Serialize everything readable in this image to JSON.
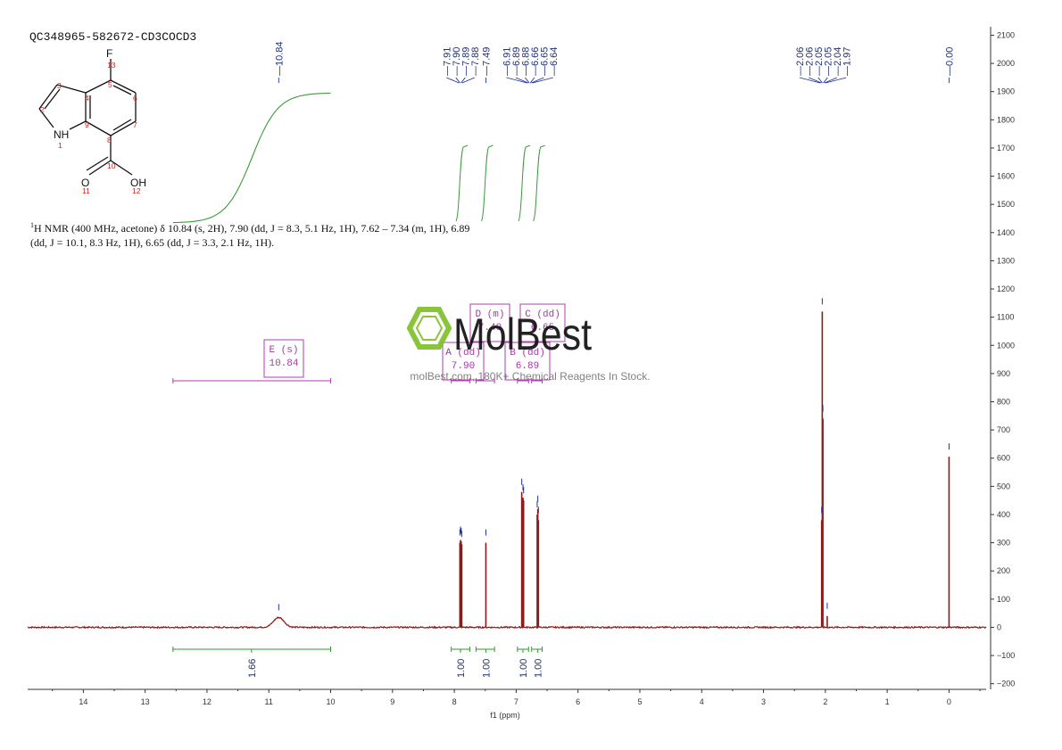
{
  "header": {
    "sample_id": "QC348965-582672-CD3COCD3",
    "nmr_description_line1": "H NMR (400 MHz, acetone) δ 10.84 (s, 2H), 7.90 (dd, J = 8.3, 5.1 Hz, 1H), 7.62 – 7.34 (m, 1H), 6.89",
    "nmr_description_superscript": "1",
    "nmr_description_line2": "(dd, J = 10.1, 8.3 Hz, 1H), 6.65 (dd, J = 3.3, 2.1 Hz, 1H)."
  },
  "structure": {
    "atoms": [
      {
        "label": "F",
        "num": "13"
      },
      {
        "label": "NH",
        "num": "1"
      },
      {
        "label": "O",
        "num": "11"
      },
      {
        "label": "OH",
        "num": "12"
      }
    ],
    "ring_numbers": [
      "2",
      "3",
      "4",
      "5",
      "6",
      "7",
      "8",
      "9",
      "10"
    ]
  },
  "watermark": {
    "brand": "MolBest",
    "tagline": "molBest.com, 180K+ Chemical Reagents In Stock."
  },
  "chart_data": {
    "type": "line",
    "title": "",
    "xlabel": "f1 (ppm)",
    "ylabel": "",
    "x_reversed": true,
    "xlim": [
      14.9,
      -0.6
    ],
    "ylim": [
      -220,
      2130
    ],
    "x_ticks": [
      14,
      13,
      12,
      11,
      10,
      9,
      8,
      7,
      6,
      5,
      4,
      3,
      2,
      1,
      0
    ],
    "y_ticks": [
      -200,
      -100,
      0,
      100,
      200,
      300,
      400,
      500,
      600,
      700,
      800,
      900,
      1000,
      1100,
      1200,
      1300,
      1400,
      1500,
      1600,
      1700,
      1800,
      1900,
      2000,
      2100
    ],
    "spectrum_color": "#8b1a1a",
    "peaks": [
      {
        "ppm": 10.84,
        "height": 35,
        "width": 0.12
      },
      {
        "ppm": 7.91,
        "height": 300
      },
      {
        "ppm": 7.9,
        "height": 310
      },
      {
        "ppm": 7.89,
        "height": 305
      },
      {
        "ppm": 7.88,
        "height": 295
      },
      {
        "ppm": 7.49,
        "height": 300
      },
      {
        "ppm": 6.91,
        "height": 480
      },
      {
        "ppm": 6.89,
        "height": 460
      },
      {
        "ppm": 6.88,
        "height": 450
      },
      {
        "ppm": 6.66,
        "height": 400
      },
      {
        "ppm": 6.65,
        "height": 420
      },
      {
        "ppm": 6.64,
        "height": 380
      },
      {
        "ppm": 2.06,
        "height": 380
      },
      {
        "ppm": 2.05,
        "height": 1120
      },
      {
        "ppm": 2.04,
        "height": 740
      },
      {
        "ppm": 1.97,
        "height": 40
      },
      {
        "ppm": 0.0,
        "height": 605
      }
    ],
    "peak_labels": [
      {
        "group": "10.84",
        "labels": [
          "10.84"
        ],
        "ppm": 10.84
      },
      {
        "group": "7.9",
        "labels": [
          "7.91",
          "7.90",
          "7.89",
          "7.88"
        ],
        "ppm": 7.9
      },
      {
        "group": "7.49",
        "labels": [
          "7.49"
        ],
        "ppm": 7.49
      },
      {
        "group": "6.89",
        "labels": [
          "6.91",
          "6.89",
          "6.88",
          "6.66",
          "6.65",
          "6.64"
        ],
        "ppm": 6.78
      },
      {
        "group": "2.05",
        "labels": [
          "2.06",
          "2.06",
          "2.05",
          "2.05",
          "2.04",
          "1.97"
        ],
        "ppm": 2.04
      },
      {
        "group": "0.00",
        "labels": [
          "0.00"
        ],
        "ppm": 0.0
      }
    ],
    "integrals": [
      {
        "from": 12.55,
        "to": 10.0,
        "value": "1.66",
        "center": 11.28
      },
      {
        "from": 8.05,
        "to": 7.75,
        "value": "1.00",
        "center": 7.9
      },
      {
        "from": 7.65,
        "to": 7.35,
        "value": "1.00",
        "center": 7.49
      },
      {
        "from": 6.98,
        "to": 6.8,
        "value": "1.00",
        "center": 6.89
      },
      {
        "from": 6.75,
        "to": 6.58,
        "value": "1.00",
        "center": 6.65
      }
    ],
    "multiplets": [
      {
        "name": "E",
        "mult": "(s)",
        "shift": "10.84"
      },
      {
        "name": "A",
        "mult": "(dd)",
        "shift": "7.90"
      },
      {
        "name": "D",
        "mult": "(m)",
        "shift": "7.49"
      },
      {
        "name": "C",
        "mult": "(dd)",
        "shift": "6.65"
      },
      {
        "name": "B",
        "mult": "(dd)",
        "shift": "6.89"
      }
    ]
  }
}
